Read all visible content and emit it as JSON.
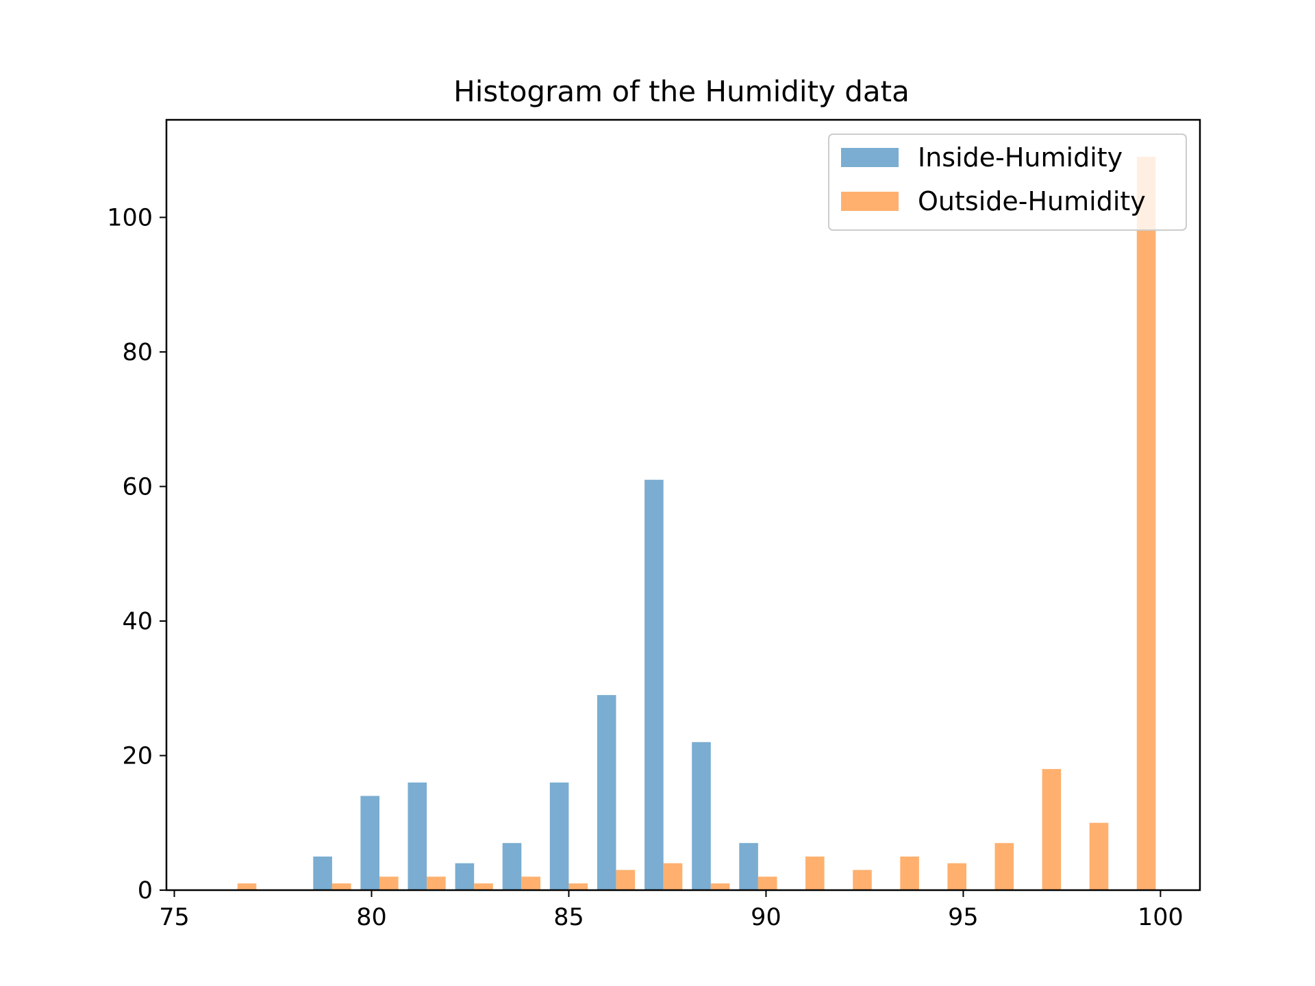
{
  "chart_data": {
    "type": "bar",
    "title": "Histogram of the Humidity data",
    "xlabel": "",
    "ylabel": "",
    "xlim": [
      74.8,
      101
    ],
    "ylim": [
      0,
      114.5
    ],
    "x_ticks": [
      75,
      80,
      85,
      90,
      95,
      100
    ],
    "y_ticks": [
      0,
      20,
      40,
      60,
      80,
      100
    ],
    "bin_edges": [
      76.0,
      77.2,
      78.4,
      79.6,
      80.8,
      82.0,
      83.2,
      84.4,
      85.6,
      86.8,
      88.0,
      89.2,
      90.4,
      91.6,
      92.8,
      94.0,
      95.2,
      96.4,
      97.6,
      98.8,
      100.0
    ],
    "grid": false,
    "legend_position": "upper right",
    "series": [
      {
        "name": "Inside-Humidity",
        "color": "#7aadd1",
        "values": [
          0,
          0,
          5,
          14,
          16,
          4,
          7,
          16,
          29,
          61,
          22,
          7,
          0,
          0,
          0,
          0,
          0,
          0,
          0,
          0
        ]
      },
      {
        "name": "Outside-Humidity",
        "color": "#ffb06e",
        "values": [
          1,
          0,
          1,
          2,
          2,
          1,
          2,
          1,
          3,
          4,
          1,
          2,
          5,
          3,
          5,
          4,
          7,
          18,
          10,
          109
        ]
      }
    ]
  }
}
